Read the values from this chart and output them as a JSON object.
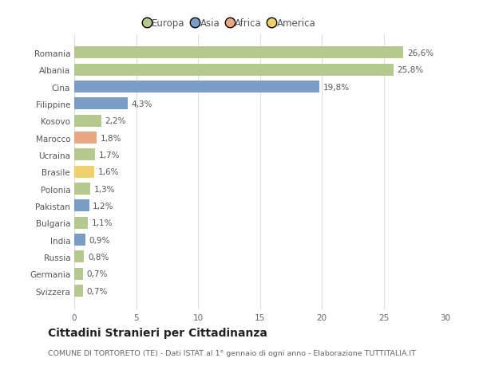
{
  "categories": [
    "Romania",
    "Albania",
    "Cina",
    "Filippine",
    "Kosovo",
    "Marocco",
    "Ucraina",
    "Brasile",
    "Polonia",
    "Pakistan",
    "Bulgaria",
    "India",
    "Russia",
    "Germania",
    "Svizzera"
  ],
  "values": [
    26.6,
    25.8,
    19.8,
    4.3,
    2.2,
    1.8,
    1.7,
    1.6,
    1.3,
    1.2,
    1.1,
    0.9,
    0.8,
    0.7,
    0.7
  ],
  "labels": [
    "26,6%",
    "25,8%",
    "19,8%",
    "4,3%",
    "2,2%",
    "1,8%",
    "1,7%",
    "1,6%",
    "1,3%",
    "1,2%",
    "1,1%",
    "0,9%",
    "0,8%",
    "0,7%",
    "0,7%"
  ],
  "colors": [
    "#b5c98e",
    "#b5c98e",
    "#7b9cc4",
    "#7b9cc4",
    "#b5c98e",
    "#e8a882",
    "#b5c98e",
    "#f0d06a",
    "#b5c98e",
    "#7b9cc4",
    "#b5c98e",
    "#7b9cc4",
    "#b5c98e",
    "#b5c98e",
    "#b5c98e"
  ],
  "legend_labels": [
    "Europa",
    "Asia",
    "Africa",
    "America"
  ],
  "legend_colors": [
    "#b5c98e",
    "#7b9cc4",
    "#e8a882",
    "#f0d06a"
  ],
  "xlim": [
    0,
    30
  ],
  "xticks": [
    0,
    5,
    10,
    15,
    20,
    25,
    30
  ],
  "title": "Cittadini Stranieri per Cittadinanza",
  "subtitle": "COMUNE DI TORTORETO (TE) - Dati ISTAT al 1° gennaio di ogni anno - Elaborazione TUTTITALIA.IT",
  "bg_color": "#ffffff",
  "grid_color": "#dddddd",
  "bar_height": 0.7,
  "label_fontsize": 7.5,
  "tick_fontsize": 7.5,
  "title_fontsize": 10,
  "subtitle_fontsize": 6.8,
  "legend_fontsize": 8.5
}
